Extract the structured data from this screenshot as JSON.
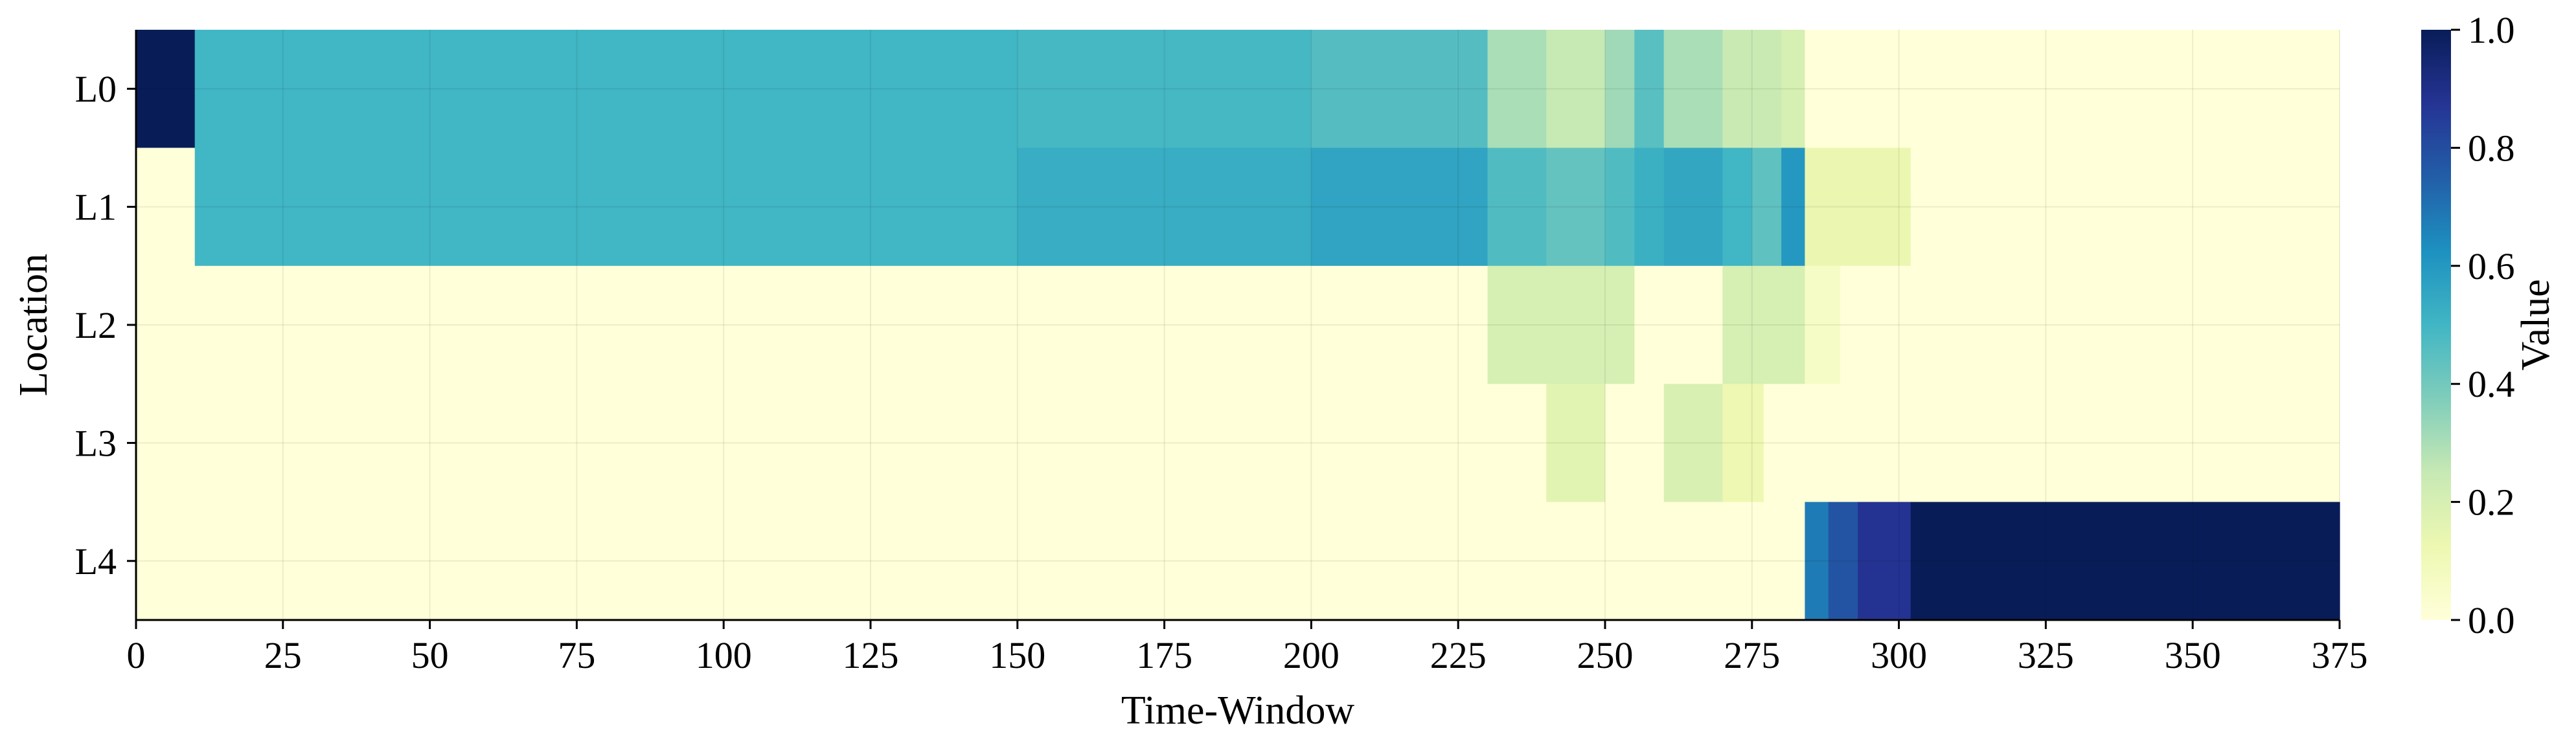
{
  "chart_data": {
    "type": "heatmap",
    "title": "",
    "xlabel": "Time-Window",
    "ylabel": "Location",
    "x_range": [
      0,
      375
    ],
    "x_ticks": [
      0,
      25,
      50,
      75,
      100,
      125,
      150,
      175,
      200,
      225,
      250,
      275,
      300,
      325,
      350,
      375
    ],
    "y_categories": [
      "L0",
      "L1",
      "L2",
      "L3",
      "L4"
    ],
    "grid": true,
    "colorbar": {
      "label": "Value",
      "range": [
        0.0,
        1.0
      ],
      "ticks": [
        "0.0",
        "0.2",
        "0.4",
        "0.6",
        "0.8",
        "1.0"
      ],
      "colormap": "YlGnBu",
      "stops": [
        "#ffffd9",
        "#edf8b1",
        "#c7e9b4",
        "#7fcdbb",
        "#41b6c4",
        "#1d91c0",
        "#225ea8",
        "#253494",
        "#081d58"
      ]
    },
    "rows": [
      {
        "location": "L0",
        "segments": [
          {
            "x0": 0,
            "x1": 10,
            "v": 1.0
          },
          {
            "x0": 10,
            "x1": 150,
            "v": 0.5
          },
          {
            "x0": 150,
            "x1": 200,
            "v": 0.49
          },
          {
            "x0": 200,
            "x1": 230,
            "v": 0.46
          },
          {
            "x0": 230,
            "x1": 240,
            "v": 0.3
          },
          {
            "x0": 240,
            "x1": 250,
            "v": 0.25
          },
          {
            "x0": 250,
            "x1": 255,
            "v": 0.32
          },
          {
            "x0": 255,
            "x1": 260,
            "v": 0.45
          },
          {
            "x0": 260,
            "x1": 270,
            "v": 0.3
          },
          {
            "x0": 270,
            "x1": 280,
            "v": 0.24
          },
          {
            "x0": 280,
            "x1": 284,
            "v": 0.2
          },
          {
            "x0": 284,
            "x1": 375,
            "v": 0.0
          }
        ]
      },
      {
        "location": "L1",
        "segments": [
          {
            "x0": 0,
            "x1": 10,
            "v": 0.0
          },
          {
            "x0": 10,
            "x1": 150,
            "v": 0.5
          },
          {
            "x0": 150,
            "x1": 200,
            "v": 0.53
          },
          {
            "x0": 200,
            "x1": 230,
            "v": 0.56
          },
          {
            "x0": 230,
            "x1": 240,
            "v": 0.47
          },
          {
            "x0": 240,
            "x1": 250,
            "v": 0.43
          },
          {
            "x0": 250,
            "x1": 255,
            "v": 0.47
          },
          {
            "x0": 255,
            "x1": 260,
            "v": 0.52
          },
          {
            "x0": 260,
            "x1": 270,
            "v": 0.55
          },
          {
            "x0": 270,
            "x1": 275,
            "v": 0.5
          },
          {
            "x0": 275,
            "x1": 280,
            "v": 0.44
          },
          {
            "x0": 280,
            "x1": 284,
            "v": 0.6
          },
          {
            "x0": 284,
            "x1": 302,
            "v": 0.13
          },
          {
            "x0": 302,
            "x1": 375,
            "v": 0.0
          }
        ]
      },
      {
        "location": "L2",
        "segments": [
          {
            "x0": 0,
            "x1": 230,
            "v": 0.0
          },
          {
            "x0": 230,
            "x1": 255,
            "v": 0.2
          },
          {
            "x0": 255,
            "x1": 270,
            "v": 0.0
          },
          {
            "x0": 270,
            "x1": 284,
            "v": 0.2
          },
          {
            "x0": 284,
            "x1": 290,
            "v": 0.06
          },
          {
            "x0": 290,
            "x1": 375,
            "v": 0.0
          }
        ]
      },
      {
        "location": "L3",
        "segments": [
          {
            "x0": 0,
            "x1": 240,
            "v": 0.0
          },
          {
            "x0": 240,
            "x1": 250,
            "v": 0.16
          },
          {
            "x0": 250,
            "x1": 260,
            "v": 0.0
          },
          {
            "x0": 260,
            "x1": 270,
            "v": 0.19
          },
          {
            "x0": 270,
            "x1": 277,
            "v": 0.12
          },
          {
            "x0": 277,
            "x1": 375,
            "v": 0.0
          }
        ]
      },
      {
        "location": "L4",
        "segments": [
          {
            "x0": 0,
            "x1": 284,
            "v": 0.0
          },
          {
            "x0": 284,
            "x1": 288,
            "v": 0.68
          },
          {
            "x0": 288,
            "x1": 293,
            "v": 0.78
          },
          {
            "x0": 293,
            "x1": 302,
            "v": 0.88
          },
          {
            "x0": 302,
            "x1": 375,
            "v": 1.0
          }
        ]
      }
    ]
  }
}
